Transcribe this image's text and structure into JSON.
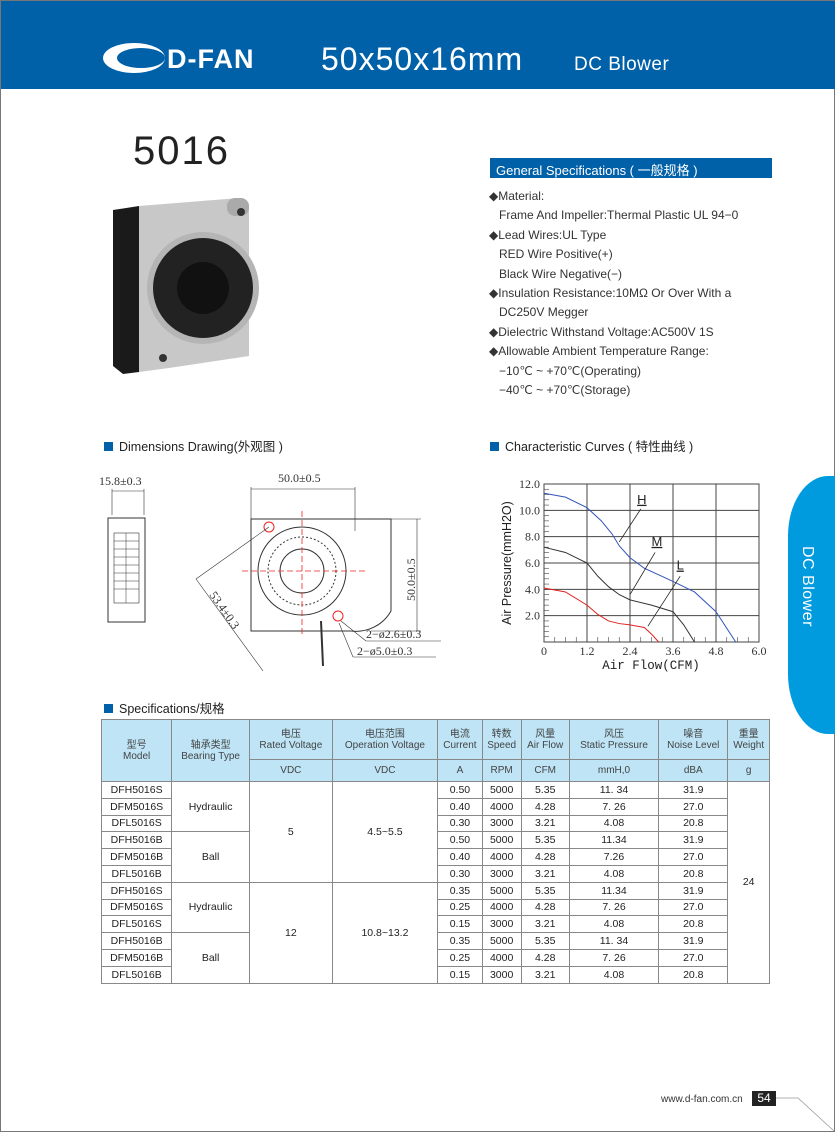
{
  "header": {
    "brand": "D-FAN",
    "size": "50x50x16mm",
    "type": "DC Blower",
    "color": "#0060A8"
  },
  "model": "5016",
  "general_specs": {
    "title": "General Specifications ( 一般规格 )",
    "lines": [
      {
        "text": "◆Material:",
        "sub": false
      },
      {
        "text": "Frame And Impeller:Thermal Plastic UL 94−0",
        "sub": true
      },
      {
        "text": "◆Lead Wires:UL Type",
        "sub": false
      },
      {
        "text": "RED Wire Positive(+)",
        "sub": true
      },
      {
        "text": "Black Wire Negative(−)",
        "sub": true
      },
      {
        "text": "◆Insulation Resistance:10MΩ  Or Over With a",
        "sub": false
      },
      {
        "text": " DC250V Megger",
        "sub": true
      },
      {
        "text": "◆Dielectric Withstand Voltage:AC500V 1S",
        "sub": false
      },
      {
        "text": "◆Allowable Ambient Temperature Range:",
        "sub": false
      },
      {
        "text": "−10℃ ~ +70℃(Operating)",
        "sub": true
      },
      {
        "text": "−40℃ ~ +70℃(Storage)",
        "sub": true
      }
    ]
  },
  "dimensions": {
    "title": "Dimensions Drawing(外观图 )",
    "thickness": "15.8±0.3",
    "width": "50.0±0.5",
    "height": "50.0±0.5",
    "diagonal": "53.4±0.3",
    "hole_small": "2−ø2.6±0.3",
    "hole_large": "2−ø5.0±0.3"
  },
  "curves_title": "Characteristic Curves ( 特性曲线 )",
  "chart_data": {
    "type": "line",
    "xlabel": "Air Flow(CFM)",
    "ylabel": "Air Pressure(mmH2O)",
    "xlim": [
      0,
      6
    ],
    "ylim": [
      0,
      12
    ],
    "xticks": [
      "0",
      "1.2",
      "2.4",
      "3.6",
      "4.8",
      "6.0"
    ],
    "yticks": [
      "2.0",
      "4.0",
      "6.0",
      "8.0",
      "10.0",
      "12.0"
    ],
    "grid": true,
    "series": [
      {
        "name": "H",
        "color": "#3355BB",
        "x": [
          0,
          0.6,
          1.2,
          1.6,
          1.9,
          2.1,
          2.4,
          2.8,
          3.2,
          3.6,
          4.2,
          4.8,
          5.35
        ],
        "y": [
          11.3,
          11.0,
          10.2,
          9.2,
          8.2,
          7.3,
          6.4,
          5.6,
          5.1,
          4.6,
          3.8,
          2.3,
          0
        ]
      },
      {
        "name": "M",
        "color": "#333333",
        "x": [
          0,
          0.6,
          1.2,
          1.5,
          1.8,
          2.1,
          2.4,
          3.0,
          3.6,
          3.9,
          4.2
        ],
        "y": [
          7.2,
          6.8,
          6.0,
          5.0,
          4.2,
          3.6,
          3.2,
          2.8,
          2.3,
          1.3,
          0
        ]
      },
      {
        "name": "L",
        "color": "#E02020",
        "x": [
          0,
          0.6,
          1.2,
          1.5,
          1.8,
          2.1,
          2.4,
          2.8,
          3.0,
          3.2
        ],
        "y": [
          4.1,
          3.8,
          2.8,
          2.1,
          1.6,
          1.4,
          1.3,
          1.1,
          0.6,
          0
        ]
      }
    ]
  },
  "specs": {
    "title": "Specifications/规格",
    "headers": [
      {
        "cn": "型号",
        "en": "Model"
      },
      {
        "cn": "轴承类型",
        "en": "Bearing Type"
      },
      {
        "cn": "电压",
        "en": "Rated Voltage",
        "unit": "VDC"
      },
      {
        "cn": "电压范围",
        "en": "Operation Voltage",
        "unit": "VDC"
      },
      {
        "cn": "电流",
        "en": "Current",
        "unit": "A"
      },
      {
        "cn": "转数",
        "en": "Speed",
        "unit": "RPM"
      },
      {
        "cn": "风量",
        "en": "Air Flow",
        "unit": "CFM"
      },
      {
        "cn": "风压",
        "en": "Static Pressure",
        "unit": "mmH,0"
      },
      {
        "cn": "噪音",
        "en": "Noise Level",
        "unit": "dBA"
      },
      {
        "cn": "重量",
        "en": "Weight",
        "unit": "g"
      }
    ],
    "groups": [
      {
        "voltage": "5",
        "range": "4.5~5.5",
        "bearings": [
          {
            "type": "Hydraulic",
            "rows": [
              [
                "DFH5016S",
                "0.50",
                "5000",
                "5.35",
                "11. 34",
                "31.9"
              ],
              [
                "DFM5016S",
                "0.40",
                "4000",
                "4.28",
                "7. 26",
                "27.0"
              ],
              [
                "DFL5016S",
                "0.30",
                "3000",
                "3.21",
                "4.08",
                "20.8"
              ]
            ]
          },
          {
            "type": "Ball",
            "rows": [
              [
                "DFH5016B",
                "0.50",
                "5000",
                "5.35",
                "11.34",
                "31.9"
              ],
              [
                "DFM5016B",
                "0.40",
                "4000",
                "4.28",
                "7.26",
                "27.0"
              ],
              [
                "DFL5016B",
                "0.30",
                "3000",
                "3.21",
                "4.08",
                "20.8"
              ]
            ]
          }
        ]
      },
      {
        "voltage": "12",
        "range": "10.8~13.2",
        "bearings": [
          {
            "type": "Hydraulic",
            "rows": [
              [
                "DFH5016S",
                "0.35",
                "5000",
                "5.35",
                "11.34",
                "31.9"
              ],
              [
                "DFM5016S",
                "0.25",
                "4000",
                "4.28",
                "7. 26",
                "27.0"
              ],
              [
                "DFL5016S",
                "0.15",
                "3000",
                "3.21",
                "4.08",
                "20.8"
              ]
            ]
          },
          {
            "type": "Ball",
            "rows": [
              [
                "DFH5016B",
                "0.35",
                "5000",
                "5.35",
                "11. 34",
                "31.9"
              ],
              [
                "DFM5016B",
                "0.25",
                "4000",
                "4.28",
                "7. 26",
                "27.0"
              ],
              [
                "DFL5016B",
                "0.15",
                "3000",
                "3.21",
                "4.08",
                "20.8"
              ]
            ]
          }
        ]
      }
    ],
    "weight": "24"
  },
  "side_tab": {
    "label": "DC Blower",
    "color": "#009ADE"
  },
  "footer": {
    "url": "www.d-fan.com.cn",
    "page": "54"
  }
}
